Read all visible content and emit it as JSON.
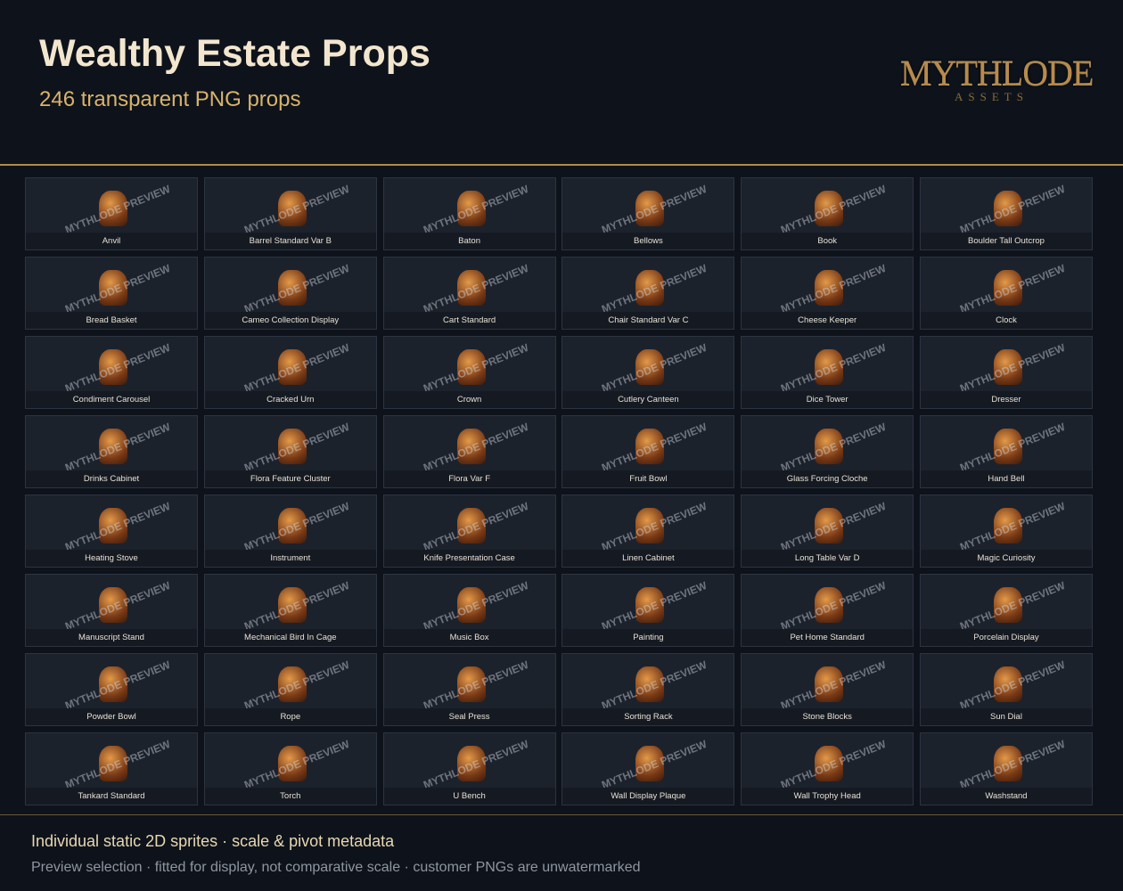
{
  "header": {
    "title": "Wealthy Estate Props",
    "subtitle": "246 transparent PNG props",
    "logo": {
      "name": "MYTHLODE",
      "tag": "ASSETS"
    }
  },
  "grid": {
    "watermark": "MYTHLODE PREVIEW",
    "items": [
      "Anvil",
      "Barrel Standard Var B",
      "Baton",
      "Bellows",
      "Book",
      "Boulder Tall Outcrop",
      "Bread Basket",
      "Cameo Collection Display",
      "Cart Standard",
      "Chair Standard Var C",
      "Cheese Keeper",
      "Clock",
      "Condiment Carousel",
      "Cracked Urn",
      "Crown",
      "Cutlery Canteen",
      "Dice Tower",
      "Dresser",
      "Drinks Cabinet",
      "Flora Feature Cluster",
      "Flora Var F",
      "Fruit Bowl",
      "Glass Forcing Cloche",
      "Hand Bell",
      "Heating Stove",
      "Instrument",
      "Knife Presentation Case",
      "Linen Cabinet",
      "Long Table Var D",
      "Magic Curiosity",
      "Manuscript Stand",
      "Mechanical Bird In Cage",
      "Music Box",
      "Painting",
      "Pet Home Standard",
      "Porcelain Display",
      "Powder Bowl",
      "Rope",
      "Seal Press",
      "Sorting Rack",
      "Stone Blocks",
      "Sun Dial",
      "Tankard Standard",
      "Torch",
      "U Bench",
      "Wall Display Plaque",
      "Wall Trophy Head",
      "Washstand"
    ]
  },
  "footer": {
    "line1": "Individual static 2D sprites · scale & pivot metadata",
    "line2": "Preview selection · fitted for display, not comparative scale · customer PNGs are unwatermarked"
  }
}
